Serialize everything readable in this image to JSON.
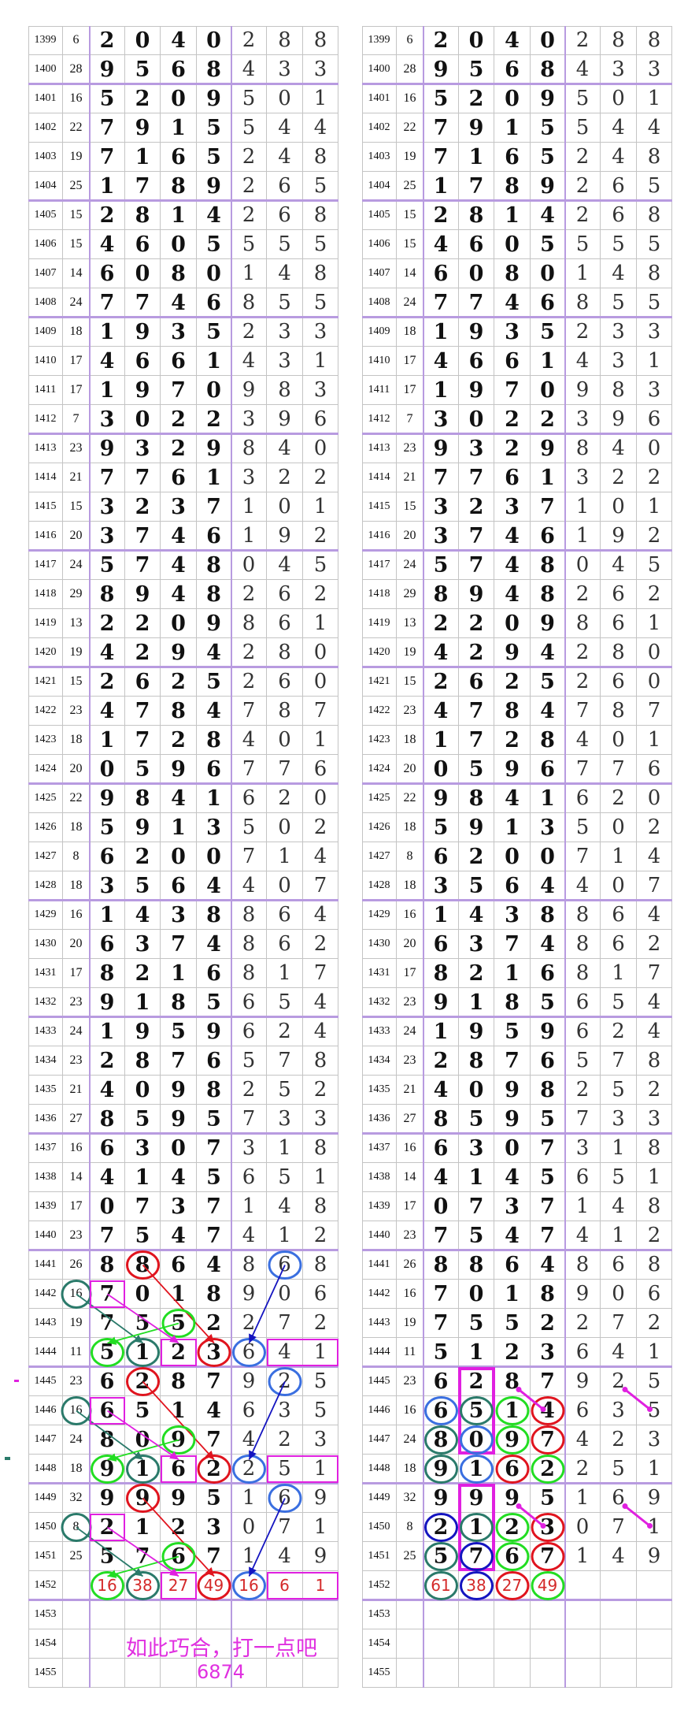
{
  "colors": {
    "red": "#e0141e",
    "blue": "#3a6fe0",
    "dark_blue": "#1414c0",
    "green": "#22dd22",
    "teal": "#2a7a6a",
    "magenta": "#e020e0",
    "group_line": "#b89be0",
    "highlight_text": "#d42a2a"
  },
  "tables": [
    {
      "rows": [
        {
          "period": "1399",
          "sum": "6",
          "digits": [
            "2",
            "0",
            "4",
            "0",
            "2",
            "8",
            "8"
          ]
        },
        {
          "period": "1400",
          "sum": "28",
          "digits": [
            "9",
            "5",
            "6",
            "8",
            "4",
            "3",
            "3"
          ]
        },
        {
          "period": "1401",
          "sum": "16",
          "digits": [
            "5",
            "2",
            "0",
            "9",
            "5",
            "0",
            "1"
          ]
        },
        {
          "period": "1402",
          "sum": "22",
          "digits": [
            "7",
            "9",
            "1",
            "5",
            "5",
            "4",
            "4"
          ]
        },
        {
          "period": "1403",
          "sum": "19",
          "digits": [
            "7",
            "1",
            "6",
            "5",
            "2",
            "4",
            "8"
          ]
        },
        {
          "period": "1404",
          "sum": "25",
          "digits": [
            "1",
            "7",
            "8",
            "9",
            "2",
            "6",
            "5"
          ]
        },
        {
          "period": "1405",
          "sum": "15",
          "digits": [
            "2",
            "8",
            "1",
            "4",
            "2",
            "6",
            "8"
          ]
        },
        {
          "period": "1406",
          "sum": "15",
          "digits": [
            "4",
            "6",
            "0",
            "5",
            "5",
            "5",
            "5"
          ]
        },
        {
          "period": "1407",
          "sum": "14",
          "digits": [
            "6",
            "0",
            "8",
            "0",
            "1",
            "4",
            "8"
          ]
        },
        {
          "period": "1408",
          "sum": "24",
          "digits": [
            "7",
            "7",
            "4",
            "6",
            "8",
            "5",
            "5"
          ]
        },
        {
          "period": "1409",
          "sum": "18",
          "digits": [
            "1",
            "9",
            "3",
            "5",
            "2",
            "3",
            "3"
          ]
        },
        {
          "period": "1410",
          "sum": "17",
          "digits": [
            "4",
            "6",
            "6",
            "1",
            "4",
            "3",
            "1"
          ]
        },
        {
          "period": "1411",
          "sum": "17",
          "digits": [
            "1",
            "9",
            "7",
            "0",
            "9",
            "8",
            "3"
          ]
        },
        {
          "period": "1412",
          "sum": "7",
          "digits": [
            "3",
            "0",
            "2",
            "2",
            "3",
            "9",
            "6"
          ]
        },
        {
          "period": "1413",
          "sum": "23",
          "digits": [
            "9",
            "3",
            "2",
            "9",
            "8",
            "4",
            "0"
          ]
        },
        {
          "period": "1414",
          "sum": "21",
          "digits": [
            "7",
            "7",
            "6",
            "1",
            "3",
            "2",
            "2"
          ]
        },
        {
          "period": "1415",
          "sum": "15",
          "digits": [
            "3",
            "2",
            "3",
            "7",
            "1",
            "0",
            "1"
          ]
        },
        {
          "period": "1416",
          "sum": "20",
          "digits": [
            "3",
            "7",
            "4",
            "6",
            "1",
            "9",
            "2"
          ]
        },
        {
          "period": "1417",
          "sum": "24",
          "digits": [
            "5",
            "7",
            "4",
            "8",
            "0",
            "4",
            "5"
          ]
        },
        {
          "period": "1418",
          "sum": "29",
          "digits": [
            "8",
            "9",
            "4",
            "8",
            "2",
            "6",
            "2"
          ]
        },
        {
          "period": "1419",
          "sum": "13",
          "digits": [
            "2",
            "2",
            "0",
            "9",
            "8",
            "6",
            "1"
          ]
        },
        {
          "period": "1420",
          "sum": "19",
          "digits": [
            "4",
            "2",
            "9",
            "4",
            "2",
            "8",
            "0"
          ]
        },
        {
          "period": "1421",
          "sum": "15",
          "digits": [
            "2",
            "6",
            "2",
            "5",
            "2",
            "6",
            "0"
          ]
        },
        {
          "period": "1422",
          "sum": "23",
          "digits": [
            "4",
            "7",
            "8",
            "4",
            "7",
            "8",
            "7"
          ]
        },
        {
          "period": "1423",
          "sum": "18",
          "digits": [
            "1",
            "7",
            "2",
            "8",
            "4",
            "0",
            "1"
          ]
        },
        {
          "period": "1424",
          "sum": "20",
          "digits": [
            "0",
            "5",
            "9",
            "6",
            "7",
            "7",
            "6"
          ]
        },
        {
          "period": "1425",
          "sum": "22",
          "digits": [
            "9",
            "8",
            "4",
            "1",
            "6",
            "2",
            "0"
          ]
        },
        {
          "period": "1426",
          "sum": "18",
          "digits": [
            "5",
            "9",
            "1",
            "3",
            "5",
            "0",
            "2"
          ]
        },
        {
          "period": "1427",
          "sum": "8",
          "digits": [
            "6",
            "2",
            "0",
            "0",
            "7",
            "1",
            "4"
          ]
        },
        {
          "period": "1428",
          "sum": "18",
          "digits": [
            "3",
            "5",
            "6",
            "4",
            "4",
            "0",
            "7"
          ]
        },
        {
          "period": "1429",
          "sum": "16",
          "digits": [
            "1",
            "4",
            "3",
            "8",
            "8",
            "6",
            "4"
          ]
        },
        {
          "period": "1430",
          "sum": "20",
          "digits": [
            "6",
            "3",
            "7",
            "4",
            "8",
            "6",
            "2"
          ]
        },
        {
          "period": "1431",
          "sum": "17",
          "digits": [
            "8",
            "2",
            "1",
            "6",
            "8",
            "1",
            "7"
          ]
        },
        {
          "period": "1432",
          "sum": "23",
          "digits": [
            "9",
            "1",
            "8",
            "5",
            "6",
            "5",
            "4"
          ]
        },
        {
          "period": "1433",
          "sum": "24",
          "digits": [
            "1",
            "9",
            "5",
            "9",
            "6",
            "2",
            "4"
          ]
        },
        {
          "period": "1434",
          "sum": "23",
          "digits": [
            "2",
            "8",
            "7",
            "6",
            "5",
            "7",
            "8"
          ]
        },
        {
          "period": "1435",
          "sum": "21",
          "digits": [
            "4",
            "0",
            "9",
            "8",
            "2",
            "5",
            "2"
          ]
        },
        {
          "period": "1436",
          "sum": "27",
          "digits": [
            "8",
            "5",
            "9",
            "5",
            "7",
            "3",
            "3"
          ]
        },
        {
          "period": "1437",
          "sum": "16",
          "digits": [
            "6",
            "3",
            "0",
            "7",
            "3",
            "1",
            "8"
          ]
        },
        {
          "period": "1438",
          "sum": "14",
          "digits": [
            "4",
            "1",
            "4",
            "5",
            "6",
            "5",
            "1"
          ]
        },
        {
          "period": "1439",
          "sum": "17",
          "digits": [
            "0",
            "7",
            "3",
            "7",
            "1",
            "4",
            "8"
          ]
        },
        {
          "period": "1440",
          "sum": "23",
          "digits": [
            "7",
            "5",
            "4",
            "7",
            "4",
            "1",
            "2"
          ]
        },
        {
          "period": "1441",
          "sum": "26",
          "digits": [
            "8",
            "8",
            "6",
            "4",
            "8",
            "6",
            "8"
          ]
        },
        {
          "period": "1442",
          "sum": "16",
          "digits": [
            "7",
            "0",
            "1",
            "8",
            "9",
            "0",
            "6"
          ]
        },
        {
          "period": "1443",
          "sum": "19",
          "digits": [
            "7",
            "5",
            "5",
            "2",
            "2",
            "7",
            "2"
          ]
        },
        {
          "period": "1444",
          "sum": "11",
          "digits": [
            "5",
            "1",
            "2",
            "3",
            "6",
            "4",
            "1"
          ]
        },
        {
          "period": "1445",
          "sum": "23",
          "digits": [
            "6",
            "2",
            "8",
            "7",
            "9",
            "2",
            "5"
          ]
        },
        {
          "period": "1446",
          "sum": "16",
          "digits": [
            "6",
            "5",
            "1",
            "4",
            "6",
            "3",
            "5"
          ]
        },
        {
          "period": "1447",
          "sum": "24",
          "digits": [
            "8",
            "0",
            "9",
            "7",
            "4",
            "2",
            "3"
          ]
        },
        {
          "period": "1448",
          "sum": "18",
          "digits": [
            "9",
            "1",
            "6",
            "2",
            "2",
            "5",
            "1"
          ]
        },
        {
          "period": "1449",
          "sum": "32",
          "digits": [
            "9",
            "9",
            "9",
            "5",
            "1",
            "6",
            "9"
          ]
        },
        {
          "period": "1450",
          "sum": "8",
          "digits": [
            "2",
            "1",
            "2",
            "3",
            "0",
            "7",
            "1"
          ]
        },
        {
          "period": "1451",
          "sum": "25",
          "digits": [
            "5",
            "7",
            "6",
            "7",
            "1",
            "4",
            "9"
          ]
        },
        {
          "period": "1452",
          "sum": "",
          "digits": [
            "16",
            "38",
            "27",
            "49",
            "16",
            "6",
            "1"
          ]
        },
        {
          "period": "1453",
          "sum": "",
          "digits": [
            "",
            "",
            "",
            "",
            "",
            "",
            ""
          ]
        },
        {
          "period": "1454",
          "sum": "",
          "digits": [
            "",
            "",
            "",
            "",
            "",
            "",
            ""
          ]
        },
        {
          "period": "1455",
          "sum": "",
          "digits": [
            "",
            "",
            "",
            "",
            "",
            "",
            ""
          ]
        }
      ]
    },
    {
      "rows_same_as_left_except_last": true,
      "row_1452_digits": [
        "61",
        "38",
        "27",
        "49",
        "",
        "",
        ""
      ]
    }
  ],
  "annotation": {
    "line1": "如此巧合，打一点吧",
    "line2": "6874"
  }
}
